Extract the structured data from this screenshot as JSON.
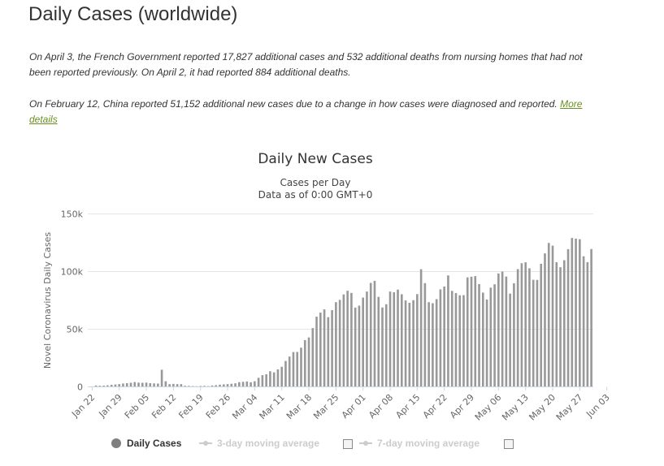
{
  "header": {
    "title": "Daily Cases (worldwide)"
  },
  "notes": {
    "note1": "On April 3, the French Government reported 17,827 additional cases and 532 additional deaths from nursing homes that had not been reported previously. On April 2, it had reported 884 additional deaths.",
    "note2": "On February 12, China reported 51,152 additional new cases due to a change in how cases were diagnosed and reported.",
    "link": "More details"
  },
  "chart_data": {
    "type": "bar",
    "title": "Daily New Cases",
    "subtitle_line1": "Cases per Day",
    "subtitle_line2": "Data as of 0:00 GMT+0",
    "ylabel": "Novel Coronavirus Daily Cases",
    "ylim": [
      0,
      150000
    ],
    "y_ticks": [
      "0",
      "50k",
      "100k",
      "150k"
    ],
    "y_tick_values": [
      0,
      50000,
      100000,
      150000
    ],
    "x_tick_labels": [
      "Jan 22",
      "Jan 29",
      "Feb 05",
      "Feb 12",
      "Feb 19",
      "Feb 26",
      "Mar 04",
      "Mar 11",
      "Mar 18",
      "Mar 25",
      "Apr 01",
      "Apr 08",
      "Apr 15",
      "Apr 22",
      "Apr 29",
      "May 06",
      "May 13",
      "May 20",
      "May 27",
      "Jun 03"
    ],
    "start_date": "Jan 22",
    "values": [
      0,
      800,
      600,
      700,
      1000,
      1400,
      1700,
      2000,
      2500,
      2800,
      3200,
      3800,
      3300,
      3200,
      3300,
      2800,
      2600,
      2500,
      14500,
      4500,
      2000,
      2200,
      2000,
      2000,
      600,
      500,
      300,
      200,
      400,
      500,
      300,
      800,
      1100,
      1500,
      1800,
      2000,
      2300,
      2700,
      3700,
      4000,
      4300,
      3600,
      4500,
      7500,
      9800,
      10600,
      13200,
      12200,
      14800,
      17100,
      22100,
      25900,
      29800,
      29900,
      33600,
      40200,
      42500,
      50600,
      60500,
      64000,
      66800,
      60100,
      66200,
      73100,
      75100,
      79800,
      83000,
      81100,
      68400,
      70100,
      77100,
      82300,
      89800,
      91600,
      77700,
      68500,
      71300,
      82300,
      81700,
      84000,
      80000,
      74600,
      72600,
      74800,
      80100,
      101700,
      89600,
      73100,
      72200,
      75700,
      84200,
      86700,
      96300,
      82900,
      81000,
      79100,
      79200,
      94600,
      95200,
      95700,
      88800,
      81400,
      75400,
      85700,
      88600,
      98000,
      99600,
      95300,
      80500,
      89500,
      101800,
      106900,
      107700,
      102500,
      92500,
      92400,
      106400,
      115400,
      124500,
      122100,
      107800,
      103400,
      109500,
      119100,
      128800,
      128200,
      127700,
      112900,
      107800,
      119200
    ],
    "series": [
      {
        "name": "Daily Cases",
        "color": "#999999",
        "enabled": true
      },
      {
        "name": "3-day moving average",
        "enabled": false
      },
      {
        "name": "7-day moving average",
        "enabled": false
      }
    ],
    "grid": true
  }
}
